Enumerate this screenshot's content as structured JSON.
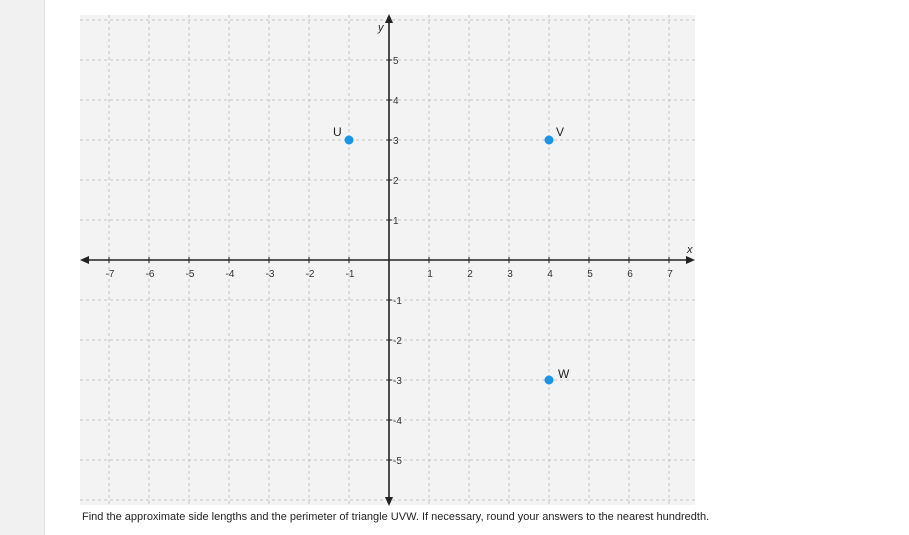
{
  "chart_data": {
    "type": "scatter",
    "title": "",
    "xlabel": "x",
    "ylabel": "y",
    "xlim": [
      -7.5,
      7.5
    ],
    "ylim": [
      -6,
      6
    ],
    "x_ticks": [
      -7,
      -6,
      -5,
      -4,
      -3,
      -2,
      -1,
      1,
      2,
      3,
      4,
      5,
      6,
      7
    ],
    "y_ticks": [
      -5,
      -4,
      -3,
      -2,
      -1,
      1,
      2,
      3,
      4,
      5
    ],
    "grid": true,
    "series": [
      {
        "points": [
          {
            "label": "U",
            "x": -1,
            "y": 3
          },
          {
            "label": "V",
            "x": 4,
            "y": 3
          },
          {
            "label": "W",
            "x": 4,
            "y": -3
          }
        ]
      }
    ],
    "colors": {
      "point": "#1a95e8",
      "background": "#f3f3f3",
      "grid": "#c4c4c4",
      "axis": "#222222"
    }
  },
  "question": {
    "prompt": "Find the approximate side lengths and the perimeter of triangle UVW. If necessary, round your answers to the nearest hundredth."
  }
}
